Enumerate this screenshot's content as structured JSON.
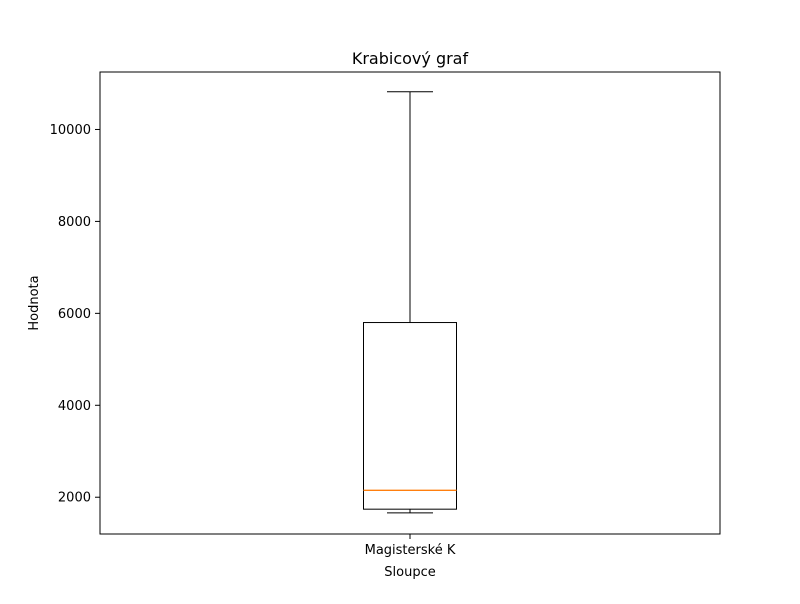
{
  "chart_data": {
    "type": "box",
    "title": "Krabicový graf",
    "xlabel": "Sloupce",
    "ylabel": "Hodnota",
    "categories": [
      "Magisterské K"
    ],
    "ylim": [
      1200,
      11250
    ],
    "yticks": [
      2000,
      4000,
      6000,
      8000,
      10000
    ],
    "ytick_labels": [
      "2000",
      "4000",
      "6000",
      "8000",
      "10000"
    ],
    "grid": false,
    "boxes": [
      {
        "category": "Magisterské K",
        "whisker_low": 1660,
        "q1": 1740,
        "median": 2150,
        "q3": 5800,
        "whisker_high": 10820
      }
    ],
    "colors": {
      "box": "#000000",
      "median": "#ff7f0e",
      "whisker": "#000000"
    }
  }
}
